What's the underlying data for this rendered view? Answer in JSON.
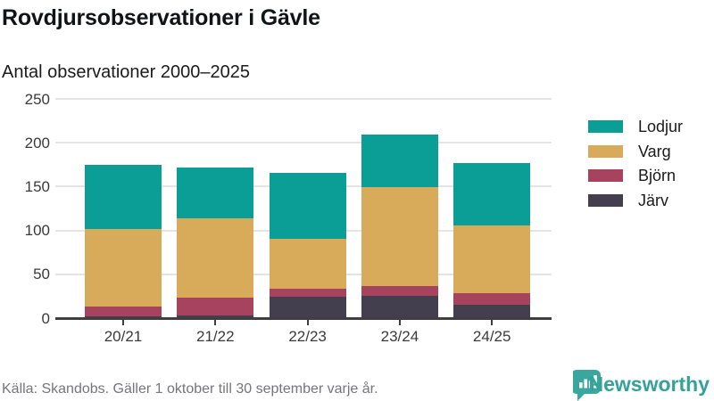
{
  "header": {
    "title": "Rovdjursobservationer i Gävle",
    "subtitle": "Antal observationer 2000–2025"
  },
  "chart_data": {
    "type": "bar",
    "stacked": true,
    "title": "Rovdjursobservationer i Gävle",
    "subtitle": "Antal observationer 2000–2025",
    "categories": [
      "20/21",
      "21/22",
      "22/23",
      "23/24",
      "24/25"
    ],
    "series": [
      {
        "name": "Järv",
        "color": "#443F4F",
        "values": [
          2,
          3,
          24,
          25,
          15
        ]
      },
      {
        "name": "Björn",
        "color": "#A7435F",
        "values": [
          11,
          20,
          10,
          12,
          13
        ]
      },
      {
        "name": "Varg",
        "color": "#D8AB5B",
        "values": [
          89,
          91,
          56,
          112,
          78
        ]
      },
      {
        "name": "Lodjur",
        "color": "#0B9E96",
        "values": [
          73,
          58,
          76,
          60,
          71
        ]
      }
    ],
    "totals": [
      175,
      172,
      166,
      209,
      177
    ],
    "xlabel": "",
    "ylabel": "",
    "ylim": [
      0,
      250
    ],
    "yticks": [
      0,
      50,
      100,
      150,
      200,
      250
    ],
    "grid": true,
    "legend_position": "right",
    "legend_order": [
      "Lodjur",
      "Varg",
      "Björn",
      "Järv"
    ]
  },
  "footer": {
    "source": "Källa: Skandobs. Gäller 1 oktober till 30 september varje år.",
    "brand": "Newsworthy",
    "brand_color": "#35a29a",
    "brand_icon": "newsworthy-speech-bubble-bar-chart-icon"
  }
}
